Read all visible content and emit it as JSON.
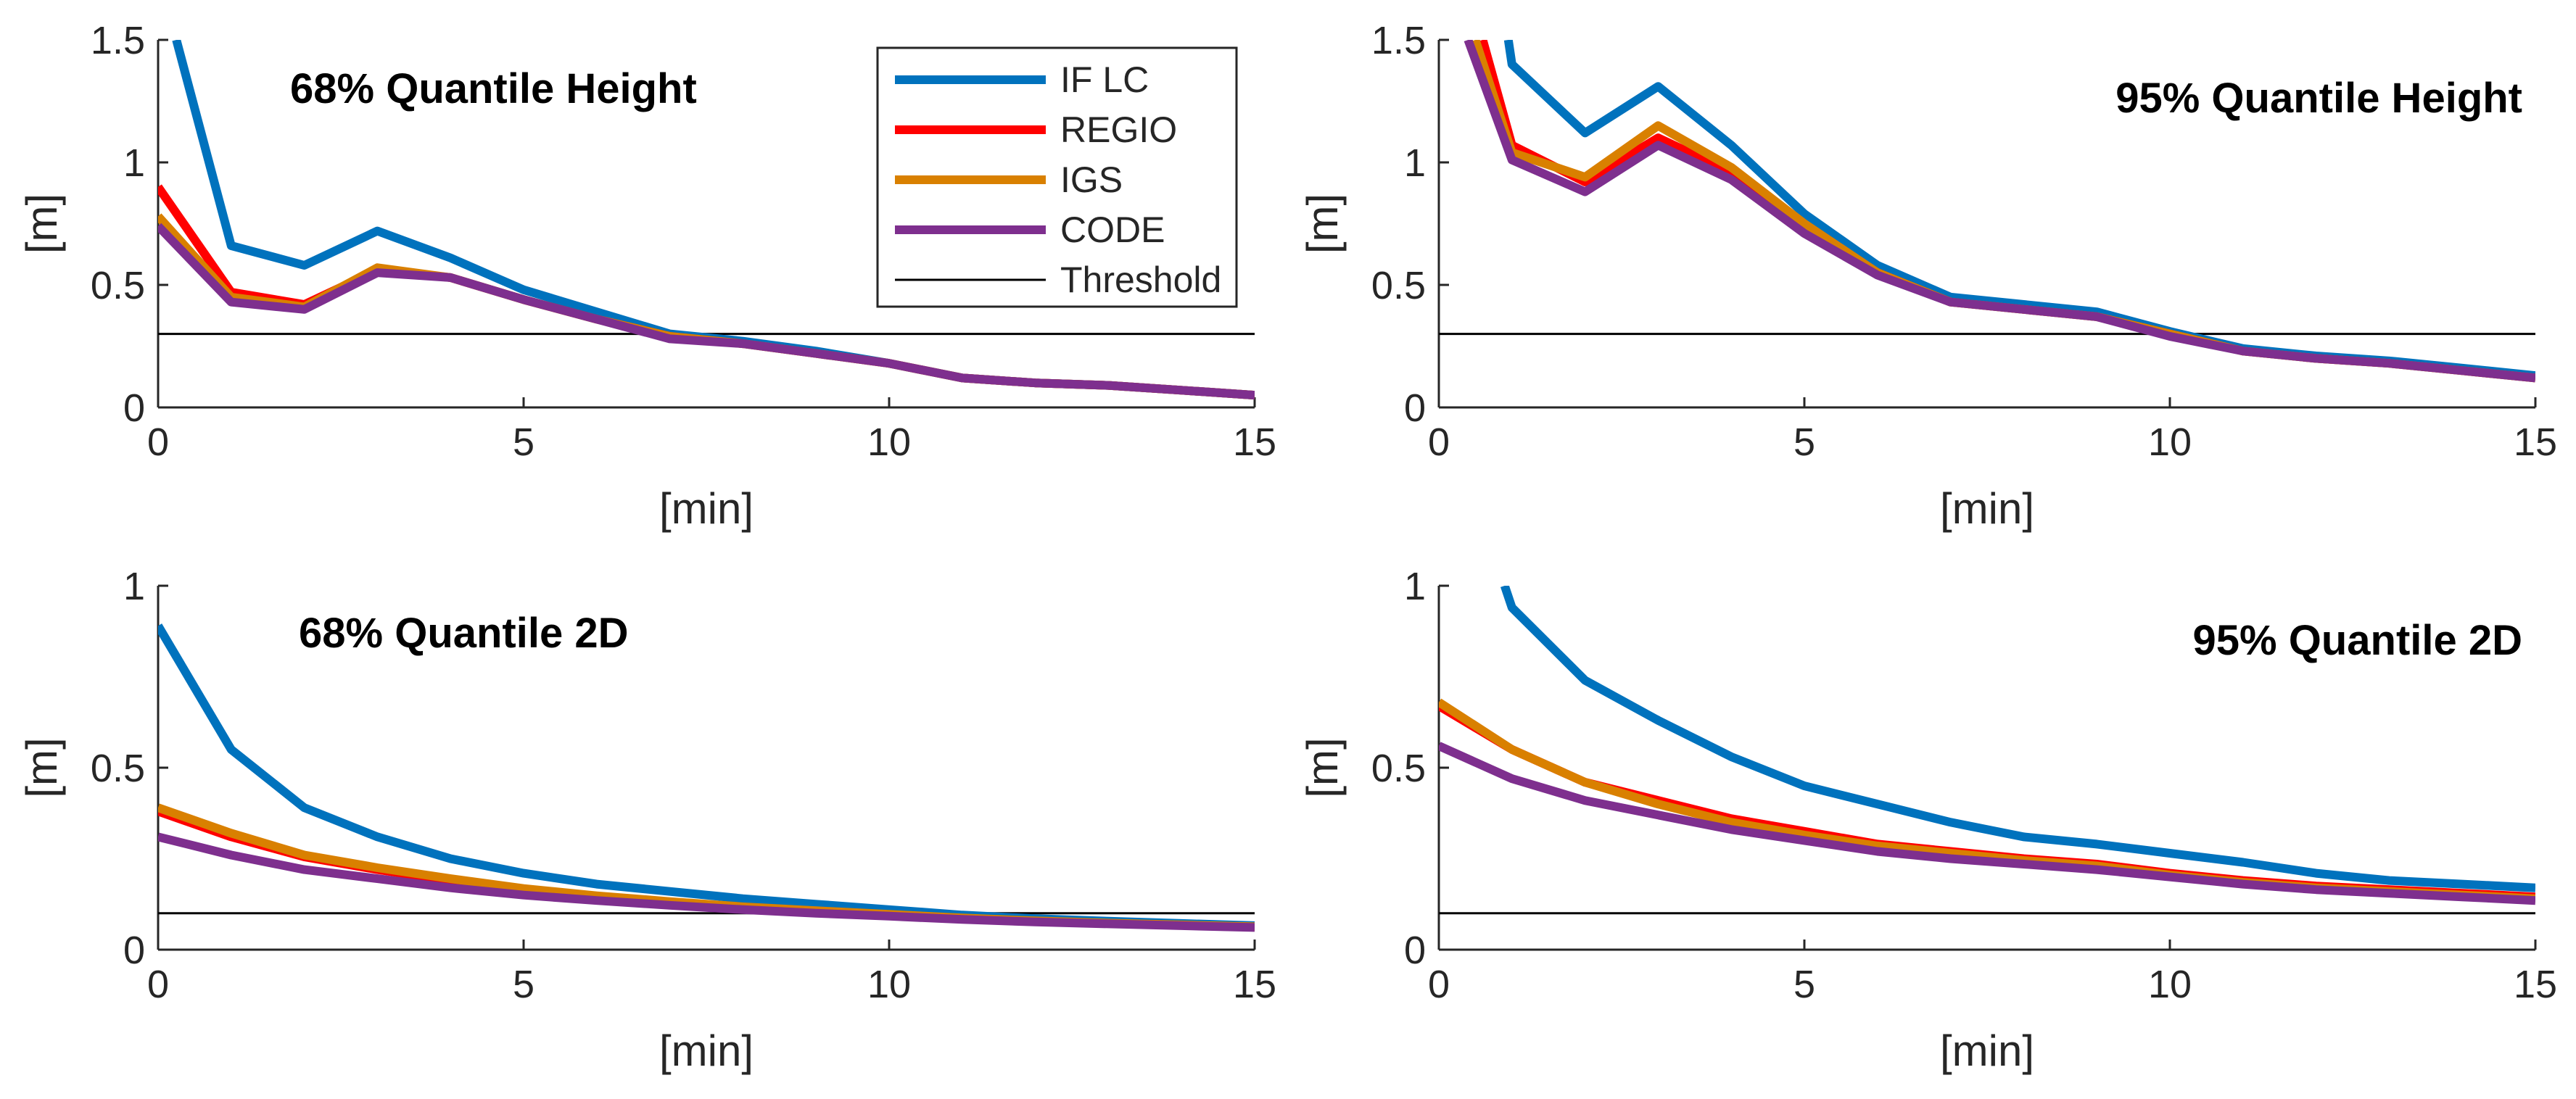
{
  "colors": {
    "if_lc": "#0072BD",
    "regio": "#FF0000",
    "igs": "#D98000",
    "code": "#7E2F8E",
    "threshold": "#000000"
  },
  "legend": {
    "entries": [
      "IF LC",
      "REGIO",
      "IGS",
      "CODE",
      "Threshold"
    ]
  },
  "chart_data": [
    {
      "type": "line",
      "title": "68% Quantile Height",
      "xlabel": "[min]",
      "ylabel": "[m]",
      "xlim": [
        0,
        15
      ],
      "ylim": [
        0,
        1.5
      ],
      "xticks": [
        0,
        5,
        10,
        15
      ],
      "yticks": [
        0,
        0.5,
        1,
        1.5
      ],
      "ytick_labels": [
        "0",
        "0.5",
        "1",
        "1.5"
      ],
      "threshold": 0.3,
      "series": [
        {
          "name": "IF LC",
          "x": [
            0.25,
            1,
            2,
            3,
            4,
            5,
            6,
            7,
            8,
            9,
            10,
            11,
            12,
            13,
            14,
            15
          ],
          "values": [
            1.5,
            0.66,
            0.58,
            0.72,
            0.61,
            0.48,
            0.39,
            0.3,
            0.27,
            0.23,
            0.18,
            0.12,
            0.1,
            0.09,
            0.07,
            0.05
          ]
        },
        {
          "name": "REGIO",
          "x": [
            0,
            1,
            2,
            3,
            4,
            5,
            6,
            7,
            8,
            9,
            10,
            11,
            12,
            13,
            14,
            15
          ],
          "values": [
            0.9,
            0.47,
            0.42,
            0.56,
            0.53,
            0.44,
            0.36,
            0.29,
            0.26,
            0.22,
            0.18,
            0.12,
            0.1,
            0.09,
            0.07,
            0.05
          ]
        },
        {
          "name": "IGS",
          "x": [
            0,
            1,
            2,
            3,
            4,
            5,
            6,
            7,
            8,
            9,
            10,
            11,
            12,
            13,
            14,
            15
          ],
          "values": [
            0.78,
            0.45,
            0.41,
            0.57,
            0.53,
            0.44,
            0.36,
            0.29,
            0.26,
            0.22,
            0.18,
            0.12,
            0.1,
            0.09,
            0.07,
            0.05
          ]
        },
        {
          "name": "CODE",
          "x": [
            0,
            1,
            2,
            3,
            4,
            5,
            6,
            7,
            8,
            9,
            10,
            11,
            12,
            13,
            14,
            15
          ],
          "values": [
            0.74,
            0.43,
            0.4,
            0.55,
            0.53,
            0.44,
            0.36,
            0.28,
            0.26,
            0.22,
            0.18,
            0.12,
            0.1,
            0.09,
            0.07,
            0.05
          ]
        }
      ]
    },
    {
      "type": "line",
      "title": "95% Quantile Height",
      "xlabel": "[min]",
      "ylabel": "[m]",
      "xlim": [
        0,
        15
      ],
      "ylim": [
        0,
        1.5
      ],
      "xticks": [
        0,
        5,
        10,
        15
      ],
      "yticks": [
        0,
        0.5,
        1,
        1.5
      ],
      "ytick_labels": [
        "0",
        "0.5",
        "1",
        "1.5"
      ],
      "threshold": 0.3,
      "series": [
        {
          "name": "IF LC",
          "x": [
            0.95,
            1,
            2,
            3,
            4,
            5,
            6,
            7,
            8,
            9,
            10,
            11,
            12,
            13,
            14,
            15
          ],
          "values": [
            1.5,
            1.4,
            1.12,
            1.31,
            1.07,
            0.79,
            0.58,
            0.45,
            0.42,
            0.39,
            0.31,
            0.24,
            0.21,
            0.19,
            0.16,
            0.13
          ]
        },
        {
          "name": "REGIO",
          "x": [
            0.6,
            1,
            2,
            3,
            4,
            5,
            6,
            7,
            8,
            9,
            10,
            11,
            12,
            13,
            14,
            15
          ],
          "values": [
            1.5,
            1.07,
            0.92,
            1.1,
            0.96,
            0.74,
            0.55,
            0.43,
            0.4,
            0.37,
            0.3,
            0.23,
            0.2,
            0.18,
            0.15,
            0.12
          ]
        },
        {
          "name": "IGS",
          "x": [
            0.5,
            1,
            2,
            3,
            4,
            5,
            6,
            7,
            8,
            9,
            10,
            11,
            12,
            13,
            14,
            15
          ],
          "values": [
            1.5,
            1.04,
            0.94,
            1.15,
            0.98,
            0.75,
            0.55,
            0.43,
            0.4,
            0.37,
            0.3,
            0.23,
            0.2,
            0.18,
            0.15,
            0.12
          ]
        },
        {
          "name": "CODE",
          "x": [
            0.4,
            1,
            2,
            3,
            4,
            5,
            6,
            7,
            8,
            9,
            10,
            11,
            12,
            13,
            14,
            15
          ],
          "values": [
            1.5,
            1.01,
            0.88,
            1.07,
            0.93,
            0.71,
            0.54,
            0.43,
            0.4,
            0.37,
            0.29,
            0.23,
            0.2,
            0.18,
            0.15,
            0.12
          ]
        }
      ]
    },
    {
      "type": "line",
      "title": "68% Quantile 2D",
      "xlabel": "[min]",
      "ylabel": "[m]",
      "xlim": [
        0,
        15
      ],
      "ylim": [
        0,
        1
      ],
      "xticks": [
        0,
        5,
        10,
        15
      ],
      "yticks": [
        0,
        0.5,
        1
      ],
      "ytick_labels": [
        "0",
        "0.5",
        "1"
      ],
      "threshold": 0.1,
      "series": [
        {
          "name": "IF LC",
          "x": [
            0,
            1,
            2,
            3,
            4,
            5,
            6,
            7,
            8,
            9,
            10,
            11,
            12,
            13,
            14,
            15
          ],
          "values": [
            0.89,
            0.55,
            0.39,
            0.31,
            0.25,
            0.21,
            0.18,
            0.16,
            0.14,
            0.125,
            0.11,
            0.095,
            0.085,
            0.078,
            0.072,
            0.066
          ]
        },
        {
          "name": "REGIO",
          "x": [
            0,
            1,
            2,
            3,
            4,
            5,
            6,
            7,
            8,
            9,
            10,
            11,
            12,
            13,
            14,
            15
          ],
          "values": [
            0.38,
            0.31,
            0.255,
            0.22,
            0.19,
            0.165,
            0.145,
            0.13,
            0.115,
            0.105,
            0.095,
            0.085,
            0.078,
            0.072,
            0.067,
            0.062
          ]
        },
        {
          "name": "IGS",
          "x": [
            0,
            1,
            2,
            3,
            4,
            5,
            6,
            7,
            8,
            9,
            10,
            11,
            12,
            13,
            14,
            15
          ],
          "values": [
            0.39,
            0.32,
            0.26,
            0.225,
            0.195,
            0.168,
            0.148,
            0.132,
            0.118,
            0.107,
            0.097,
            0.087,
            0.079,
            0.073,
            0.068,
            0.063
          ]
        },
        {
          "name": "CODE",
          "x": [
            0,
            1,
            2,
            3,
            4,
            5,
            6,
            7,
            8,
            9,
            10,
            11,
            12,
            13,
            14,
            15
          ],
          "values": [
            0.31,
            0.26,
            0.22,
            0.195,
            0.17,
            0.15,
            0.135,
            0.122,
            0.11,
            0.1,
            0.092,
            0.083,
            0.076,
            0.071,
            0.066,
            0.061
          ]
        }
      ]
    },
    {
      "type": "line",
      "title": "95% Quantile 2D",
      "xlabel": "[min]",
      "ylabel": "[m]",
      "xlim": [
        0,
        15
      ],
      "ylim": [
        0,
        1
      ],
      "xticks": [
        0,
        5,
        10,
        15
      ],
      "yticks": [
        0,
        0.5,
        1
      ],
      "ytick_labels": [
        "0",
        "0.5",
        "1"
      ],
      "threshold": 0.1,
      "series": [
        {
          "name": "IF LC",
          "x": [
            0.9,
            1,
            2,
            3,
            4,
            5,
            6,
            7,
            8,
            9,
            10,
            11,
            12,
            13,
            14,
            15
          ],
          "values": [
            1.0,
            0.94,
            0.74,
            0.63,
            0.53,
            0.45,
            0.4,
            0.35,
            0.31,
            0.29,
            0.265,
            0.24,
            0.21,
            0.19,
            0.18,
            0.17
          ]
        },
        {
          "name": "REGIO",
          "x": [
            0,
            1,
            2,
            3,
            4,
            5,
            6,
            7,
            8,
            9,
            10,
            11,
            12,
            13,
            14,
            15
          ],
          "values": [
            0.67,
            0.55,
            0.46,
            0.41,
            0.36,
            0.325,
            0.29,
            0.27,
            0.25,
            0.235,
            0.21,
            0.19,
            0.175,
            0.165,
            0.155,
            0.145
          ]
        },
        {
          "name": "IGS",
          "x": [
            0,
            1,
            2,
            3,
            4,
            5,
            6,
            7,
            8,
            9,
            10,
            11,
            12,
            13,
            14,
            15
          ],
          "values": [
            0.68,
            0.55,
            0.46,
            0.4,
            0.35,
            0.315,
            0.285,
            0.265,
            0.245,
            0.23,
            0.205,
            0.185,
            0.17,
            0.16,
            0.15,
            0.14
          ]
        },
        {
          "name": "CODE",
          "x": [
            0,
            1,
            2,
            3,
            4,
            5,
            6,
            7,
            8,
            9,
            10,
            11,
            12,
            13,
            14,
            15
          ],
          "values": [
            0.56,
            0.47,
            0.41,
            0.37,
            0.33,
            0.3,
            0.27,
            0.25,
            0.235,
            0.22,
            0.2,
            0.18,
            0.165,
            0.155,
            0.145,
            0.135
          ]
        }
      ]
    }
  ]
}
